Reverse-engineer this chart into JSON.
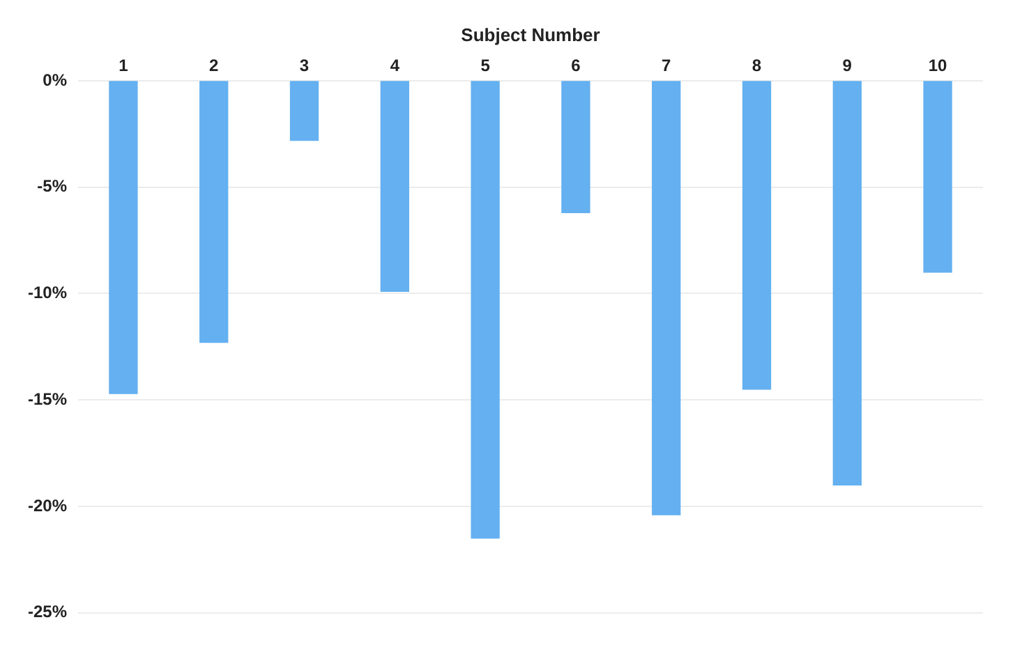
{
  "chart_data": {
    "type": "bar",
    "xlabel": "Subject Number",
    "categories": [
      "1",
      "2",
      "3",
      "4",
      "5",
      "6",
      "7",
      "8",
      "9",
      "10"
    ],
    "values": [
      -14.7,
      -12.3,
      -2.8,
      -9.9,
      -21.5,
      -6.2,
      -20.4,
      -14.5,
      -19.0,
      -9.0
    ],
    "color": "#64b0f0",
    "ylim": [
      -25,
      0
    ],
    "yticks": [
      {
        "value": 0,
        "label": "0%"
      },
      {
        "value": -5,
        "label": "-5%"
      },
      {
        "value": -10,
        "label": "-10%"
      },
      {
        "value": -15,
        "label": "-15%"
      },
      {
        "value": -20,
        "label": "-20%"
      },
      {
        "value": -25,
        "label": "-25%"
      }
    ],
    "grid": "y"
  }
}
